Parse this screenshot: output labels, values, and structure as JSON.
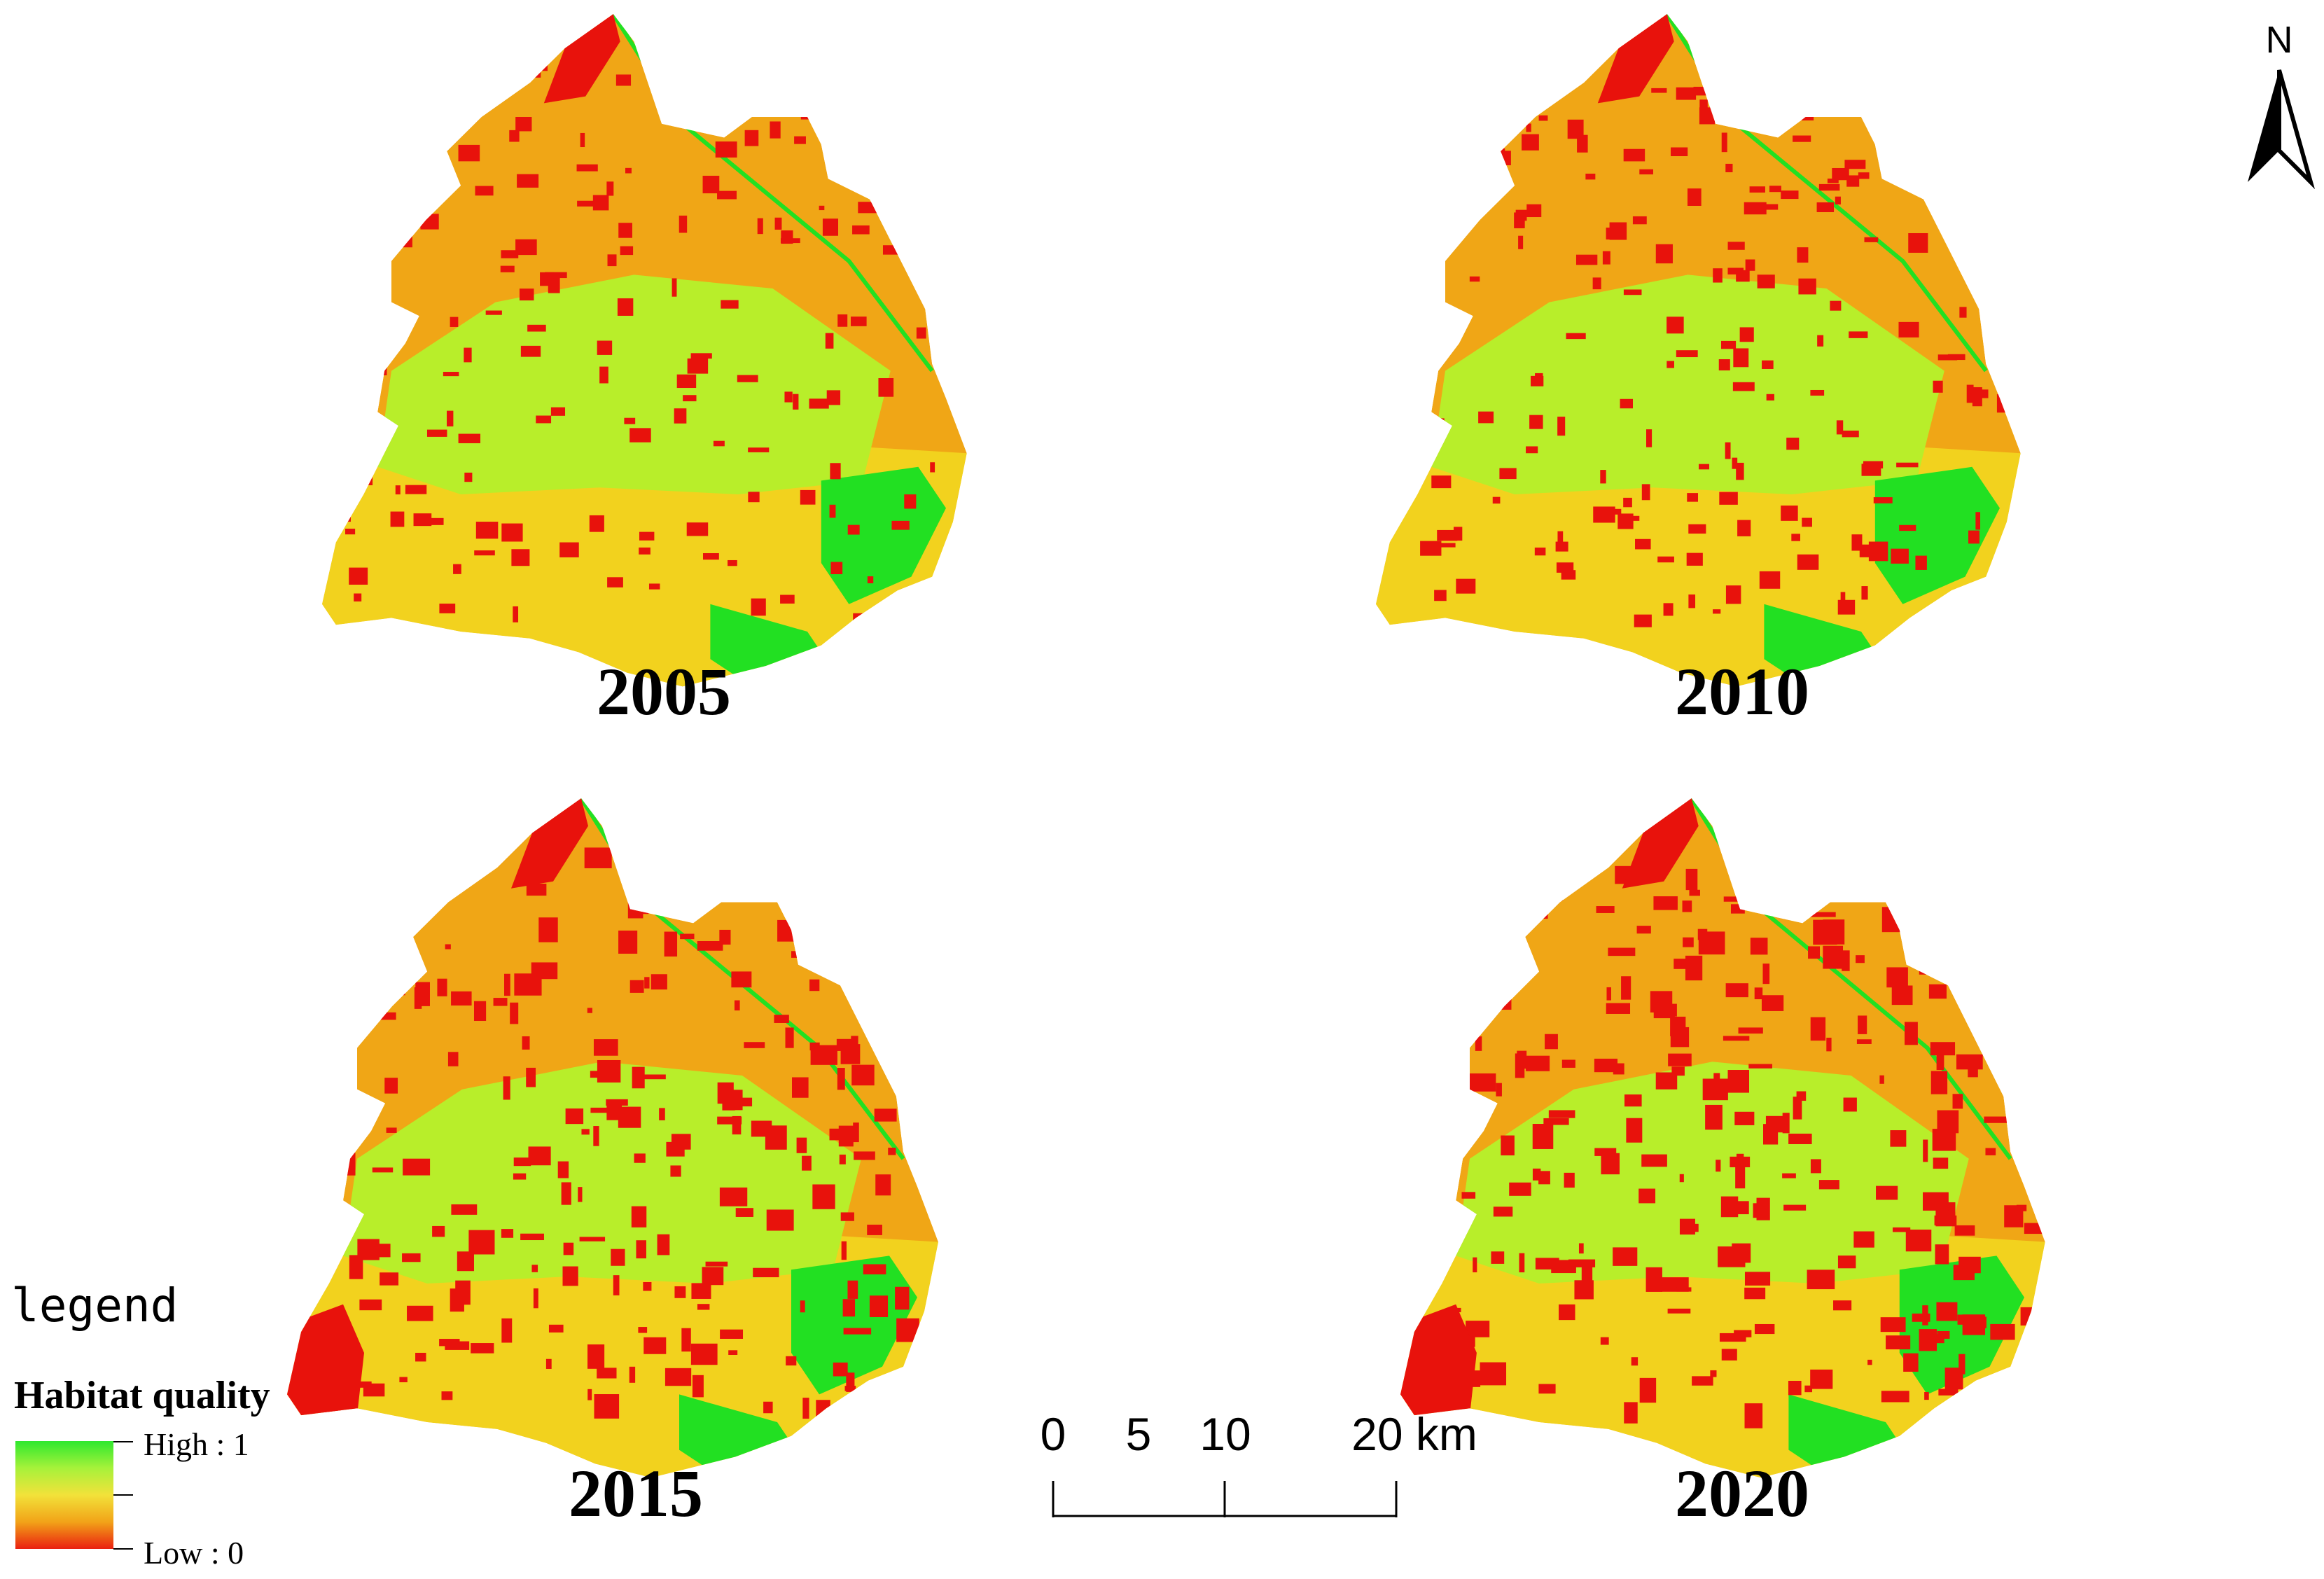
{
  "maps": [
    {
      "year": "2005"
    },
    {
      "year": "2010"
    },
    {
      "year": "2015"
    },
    {
      "year": "2020"
    }
  ],
  "north_arrow": {
    "letter": "N"
  },
  "legend": {
    "title": "legend",
    "subtitle": "Habitat quality",
    "high_label": "High : 1",
    "low_label": "Low : 0",
    "ramp_colors": [
      "#2ee82e",
      "#a6f23a",
      "#f2e23a",
      "#f2a318",
      "#ea2010"
    ]
  },
  "scale_bar": {
    "ticks": [
      "0",
      "5",
      "10",
      "20 km"
    ]
  },
  "colors": {
    "high": "#22e022",
    "mid_high": "#b8ee2a",
    "mid": "#f2d21e",
    "mid_low": "#f0a616",
    "low": "#e8120c"
  }
}
